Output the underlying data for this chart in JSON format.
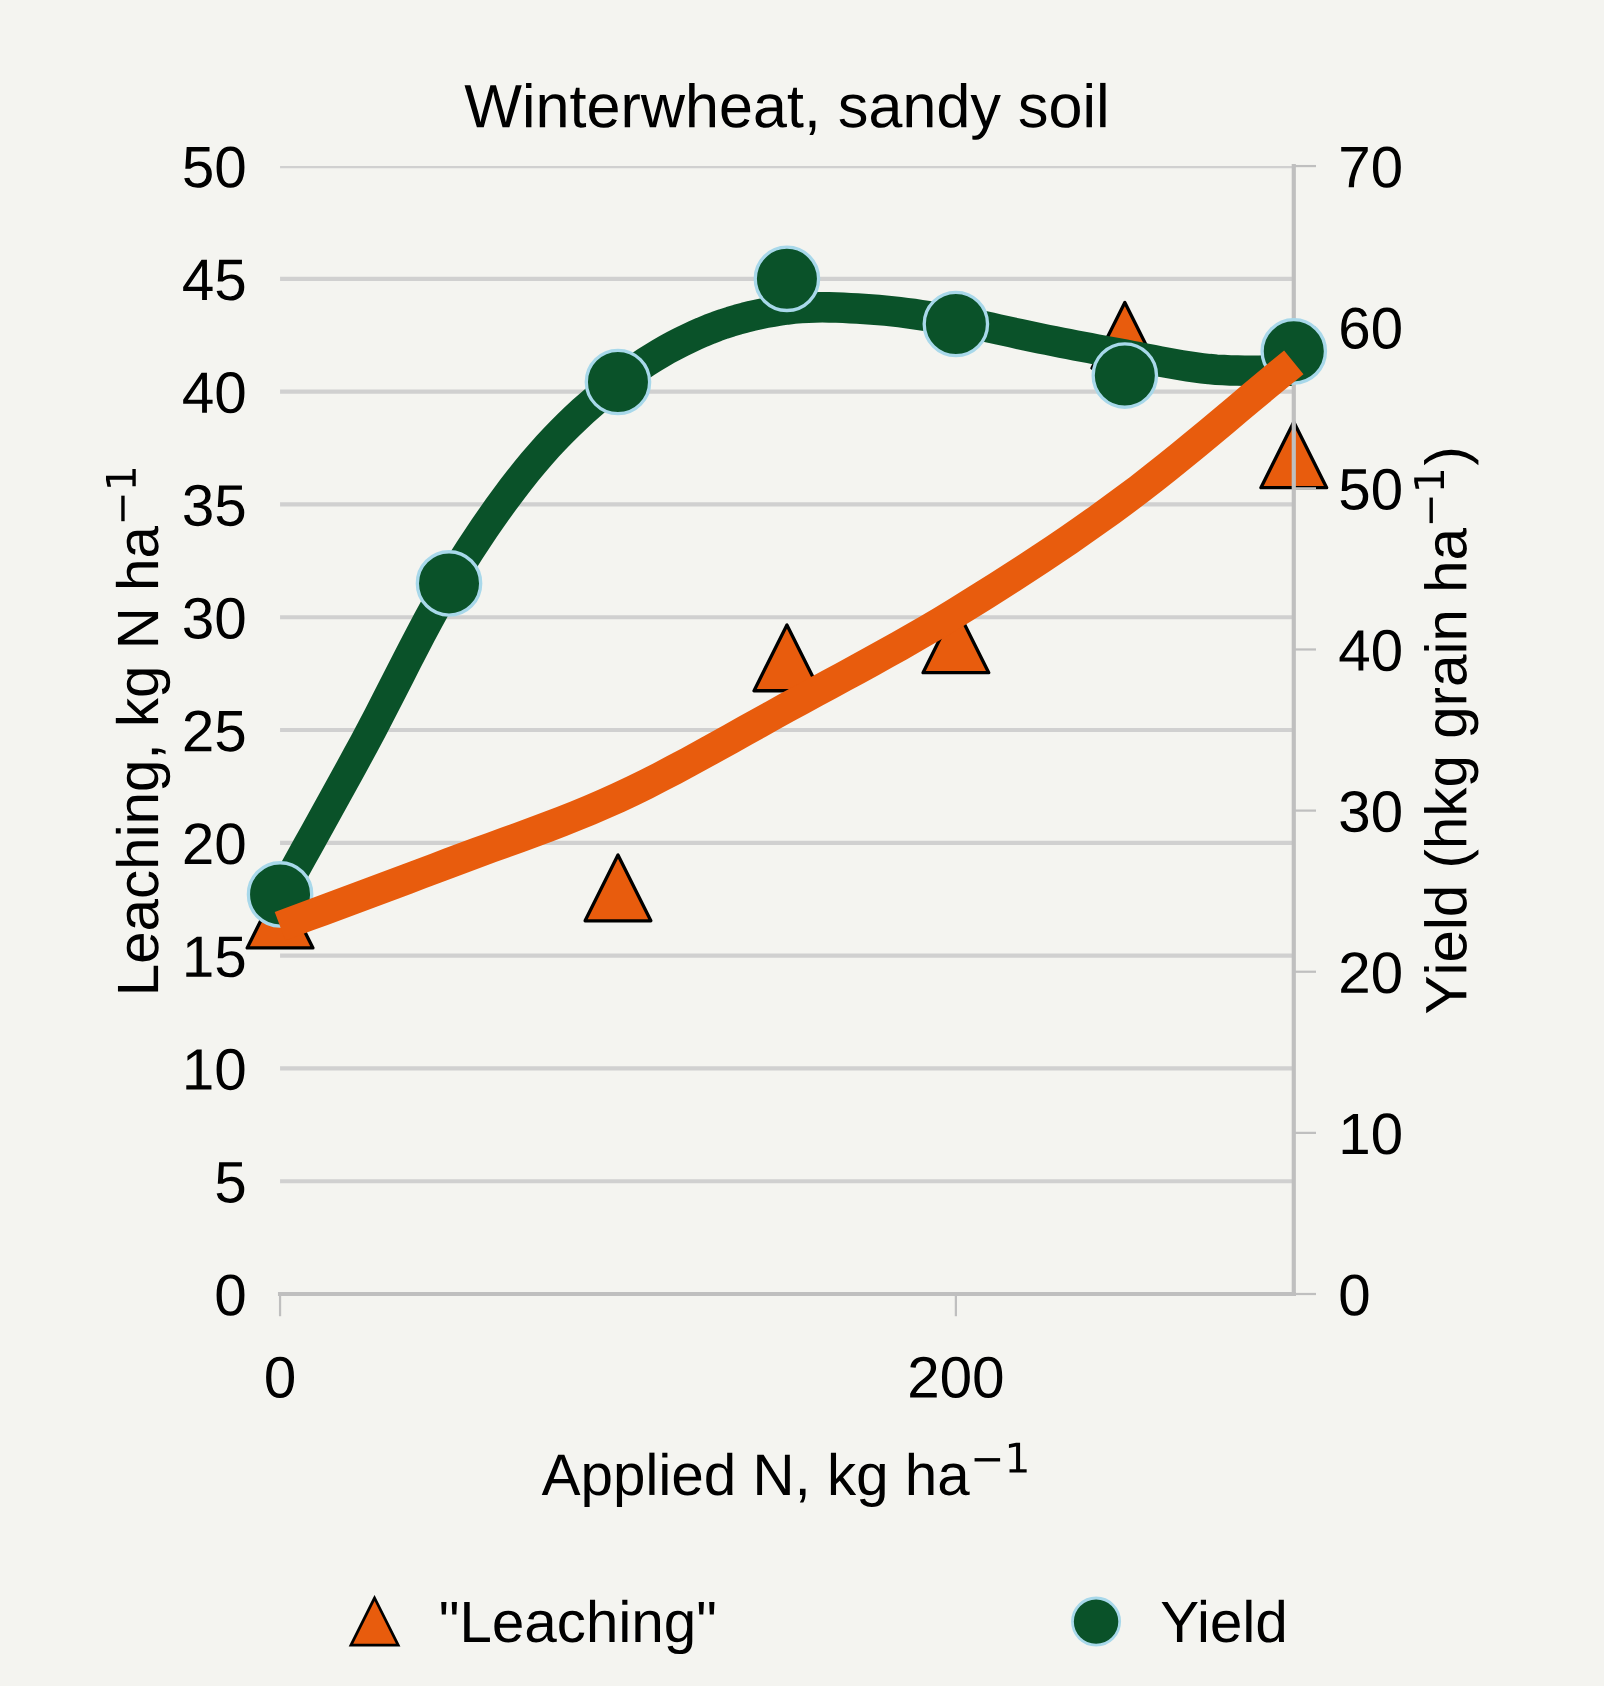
{
  "chart_data": {
    "type": "scatter",
    "title": "Winterwheat, sandy soil",
    "xlabel": "Applied N, kg ha$^{−1}$",
    "ylabel": "Leaching, kg N ha$^{−1}$",
    "y2label": "Yield (hkg grain ha$^{−1}$)",
    "series": [
      {
        "name": "\"Leaching\"",
        "marker": "triangle",
        "color": "#e85c0d",
        "x": [
          0,
          100,
          150,
          200,
          250,
          300
        ],
        "values": [
          16.8,
          18.0,
          28.2,
          29.0,
          42.5,
          37.2
        ]
      },
      {
        "name": "Yield",
        "marker": "circle",
        "color": "#0a5229",
        "axis": "y2",
        "x": [
          0,
          50,
          100,
          150,
          200,
          250,
          300
        ],
        "values": [
          24.8,
          44.1,
          56.6,
          63.0,
          60.2,
          57.0,
          58.5
        ]
      },
      {
        "type": "line",
        "color": "#e85c0d",
        "x": [
          0,
          50,
          100,
          150,
          200,
          250,
          300
        ],
        "values": [
          16.3,
          19.1,
          22.0,
          26.0,
          30.2,
          35.2,
          41.3
        ]
      },
      {
        "type": "line",
        "color": "#0a5229",
        "axis": "y2",
        "x": [
          0,
          25,
          50,
          75,
          100,
          125,
          150,
          175,
          200,
          225,
          250,
          275,
          300
        ],
        "values": [
          24.7,
          34.2,
          44.1,
          51.6,
          56.6,
          59.7,
          61.1,
          61.1,
          60.4,
          59.3,
          58.3,
          57.4,
          57.3
        ]
      }
    ],
    "xlim": [
      0,
      300
    ],
    "xticks": [
      0,
      200
    ],
    "ylim": [
      0,
      50
    ],
    "yticks": [
      0,
      5,
      10,
      15,
      20,
      25,
      30,
      35,
      40,
      45,
      50
    ],
    "y2lim": [
      0,
      70
    ],
    "y2ticks": [
      0,
      10,
      20,
      30,
      40,
      50,
      60,
      70
    ],
    "grid": "y",
    "legend": "bottom"
  }
}
